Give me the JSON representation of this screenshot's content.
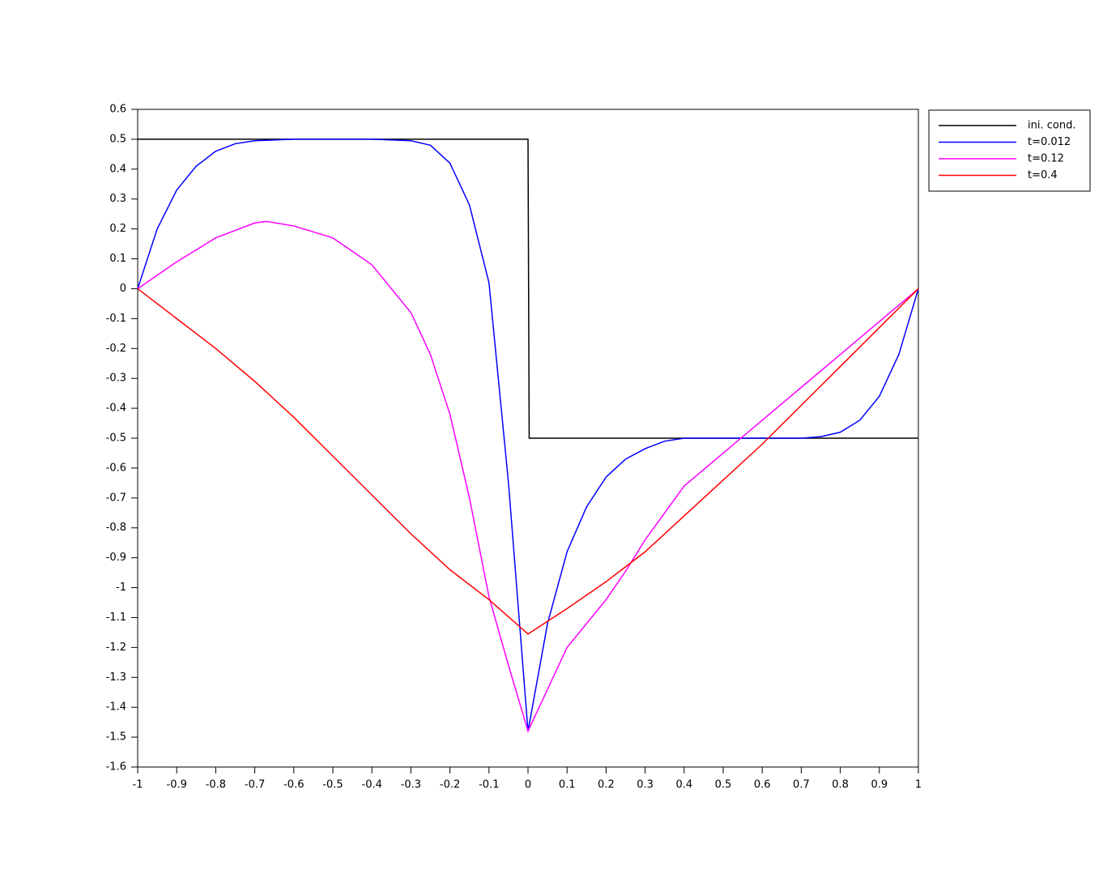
{
  "chart_data": {
    "type": "line",
    "xlim": [
      -1,
      1
    ],
    "ylim": [
      -1.6,
      0.6
    ],
    "xticks": [
      -1,
      -0.9,
      -0.8,
      -0.7,
      -0.6,
      -0.5,
      -0.4,
      -0.3,
      -0.2,
      -0.1,
      0,
      0.1,
      0.2,
      0.3,
      0.4,
      0.5,
      0.6,
      0.7,
      0.8,
      0.9,
      1
    ],
    "yticks": [
      0.6,
      0.5,
      0.4,
      0.3,
      0.2,
      0.1,
      0,
      -0.1,
      -0.2,
      -0.3,
      -0.4,
      -0.5,
      -0.6,
      -0.7,
      -0.8,
      -0.9,
      -1,
      -1.1,
      -1.2,
      -1.3,
      -1.4,
      -1.5,
      -1.6
    ],
    "legend": "outside-top-right",
    "series": [
      {
        "name": "ini. cond.",
        "color": "#000000",
        "x": [
          -1,
          0,
          0.003,
          1
        ],
        "values": [
          0.5,
          0.5,
          -0.5,
          -0.5
        ]
      },
      {
        "name": "t=0.012",
        "color": "#0000ff",
        "x": [
          -1,
          -0.95,
          -0.9,
          -0.85,
          -0.8,
          -0.75,
          -0.7,
          -0.6,
          -0.5,
          -0.4,
          -0.3,
          -0.25,
          -0.2,
          -0.15,
          -0.1,
          -0.05,
          0,
          0.05,
          0.1,
          0.15,
          0.2,
          0.25,
          0.3,
          0.35,
          0.4,
          0.5,
          0.6,
          0.7,
          0.75,
          0.8,
          0.85,
          0.9,
          0.95,
          1
        ],
        "values": [
          0,
          0.2,
          0.33,
          0.41,
          0.46,
          0.485,
          0.495,
          0.5,
          0.5,
          0.5,
          0.495,
          0.48,
          0.42,
          0.28,
          0.02,
          -0.65,
          -1.48,
          -1.12,
          -0.88,
          -0.73,
          -0.63,
          -0.57,
          -0.535,
          -0.51,
          -0.5,
          -0.5,
          -0.5,
          -0.5,
          -0.495,
          -0.48,
          -0.44,
          -0.36,
          -0.22,
          0
        ]
      },
      {
        "name": "t=0.12",
        "color": "#ff00ff",
        "x": [
          -1,
          -0.9,
          -0.8,
          -0.7,
          -0.67,
          -0.6,
          -0.5,
          -0.4,
          -0.3,
          -0.25,
          -0.2,
          -0.15,
          -0.1,
          -0.05,
          0,
          0.1,
          0.2,
          0.25,
          0.3,
          0.4,
          0.5,
          0.6,
          0.7,
          0.8,
          0.9,
          1
        ],
        "values": [
          0,
          0.09,
          0.17,
          0.22,
          0.225,
          0.21,
          0.17,
          0.08,
          -0.08,
          -0.22,
          -0.42,
          -0.7,
          -1.03,
          -1.26,
          -1.48,
          -1.2,
          -1.04,
          -0.945,
          -0.84,
          -0.66,
          -0.55,
          -0.44,
          -0.33,
          -0.22,
          -0.11,
          0
        ]
      },
      {
        "name": "t=0.4",
        "color": "#ff0000",
        "x": [
          -1,
          -0.9,
          -0.8,
          -0.7,
          -0.6,
          -0.5,
          -0.4,
          -0.3,
          -0.2,
          -0.1,
          0,
          0.1,
          0.2,
          0.3,
          0.4,
          0.5,
          0.6,
          0.7,
          0.8,
          0.9,
          1
        ],
        "values": [
          0,
          -0.1,
          -0.2,
          -0.31,
          -0.43,
          -0.56,
          -0.69,
          -0.82,
          -0.94,
          -1.04,
          -1.155,
          -1.07,
          -0.98,
          -0.88,
          -0.76,
          -0.64,
          -0.52,
          -0.39,
          -0.26,
          -0.13,
          0
        ]
      }
    ]
  }
}
